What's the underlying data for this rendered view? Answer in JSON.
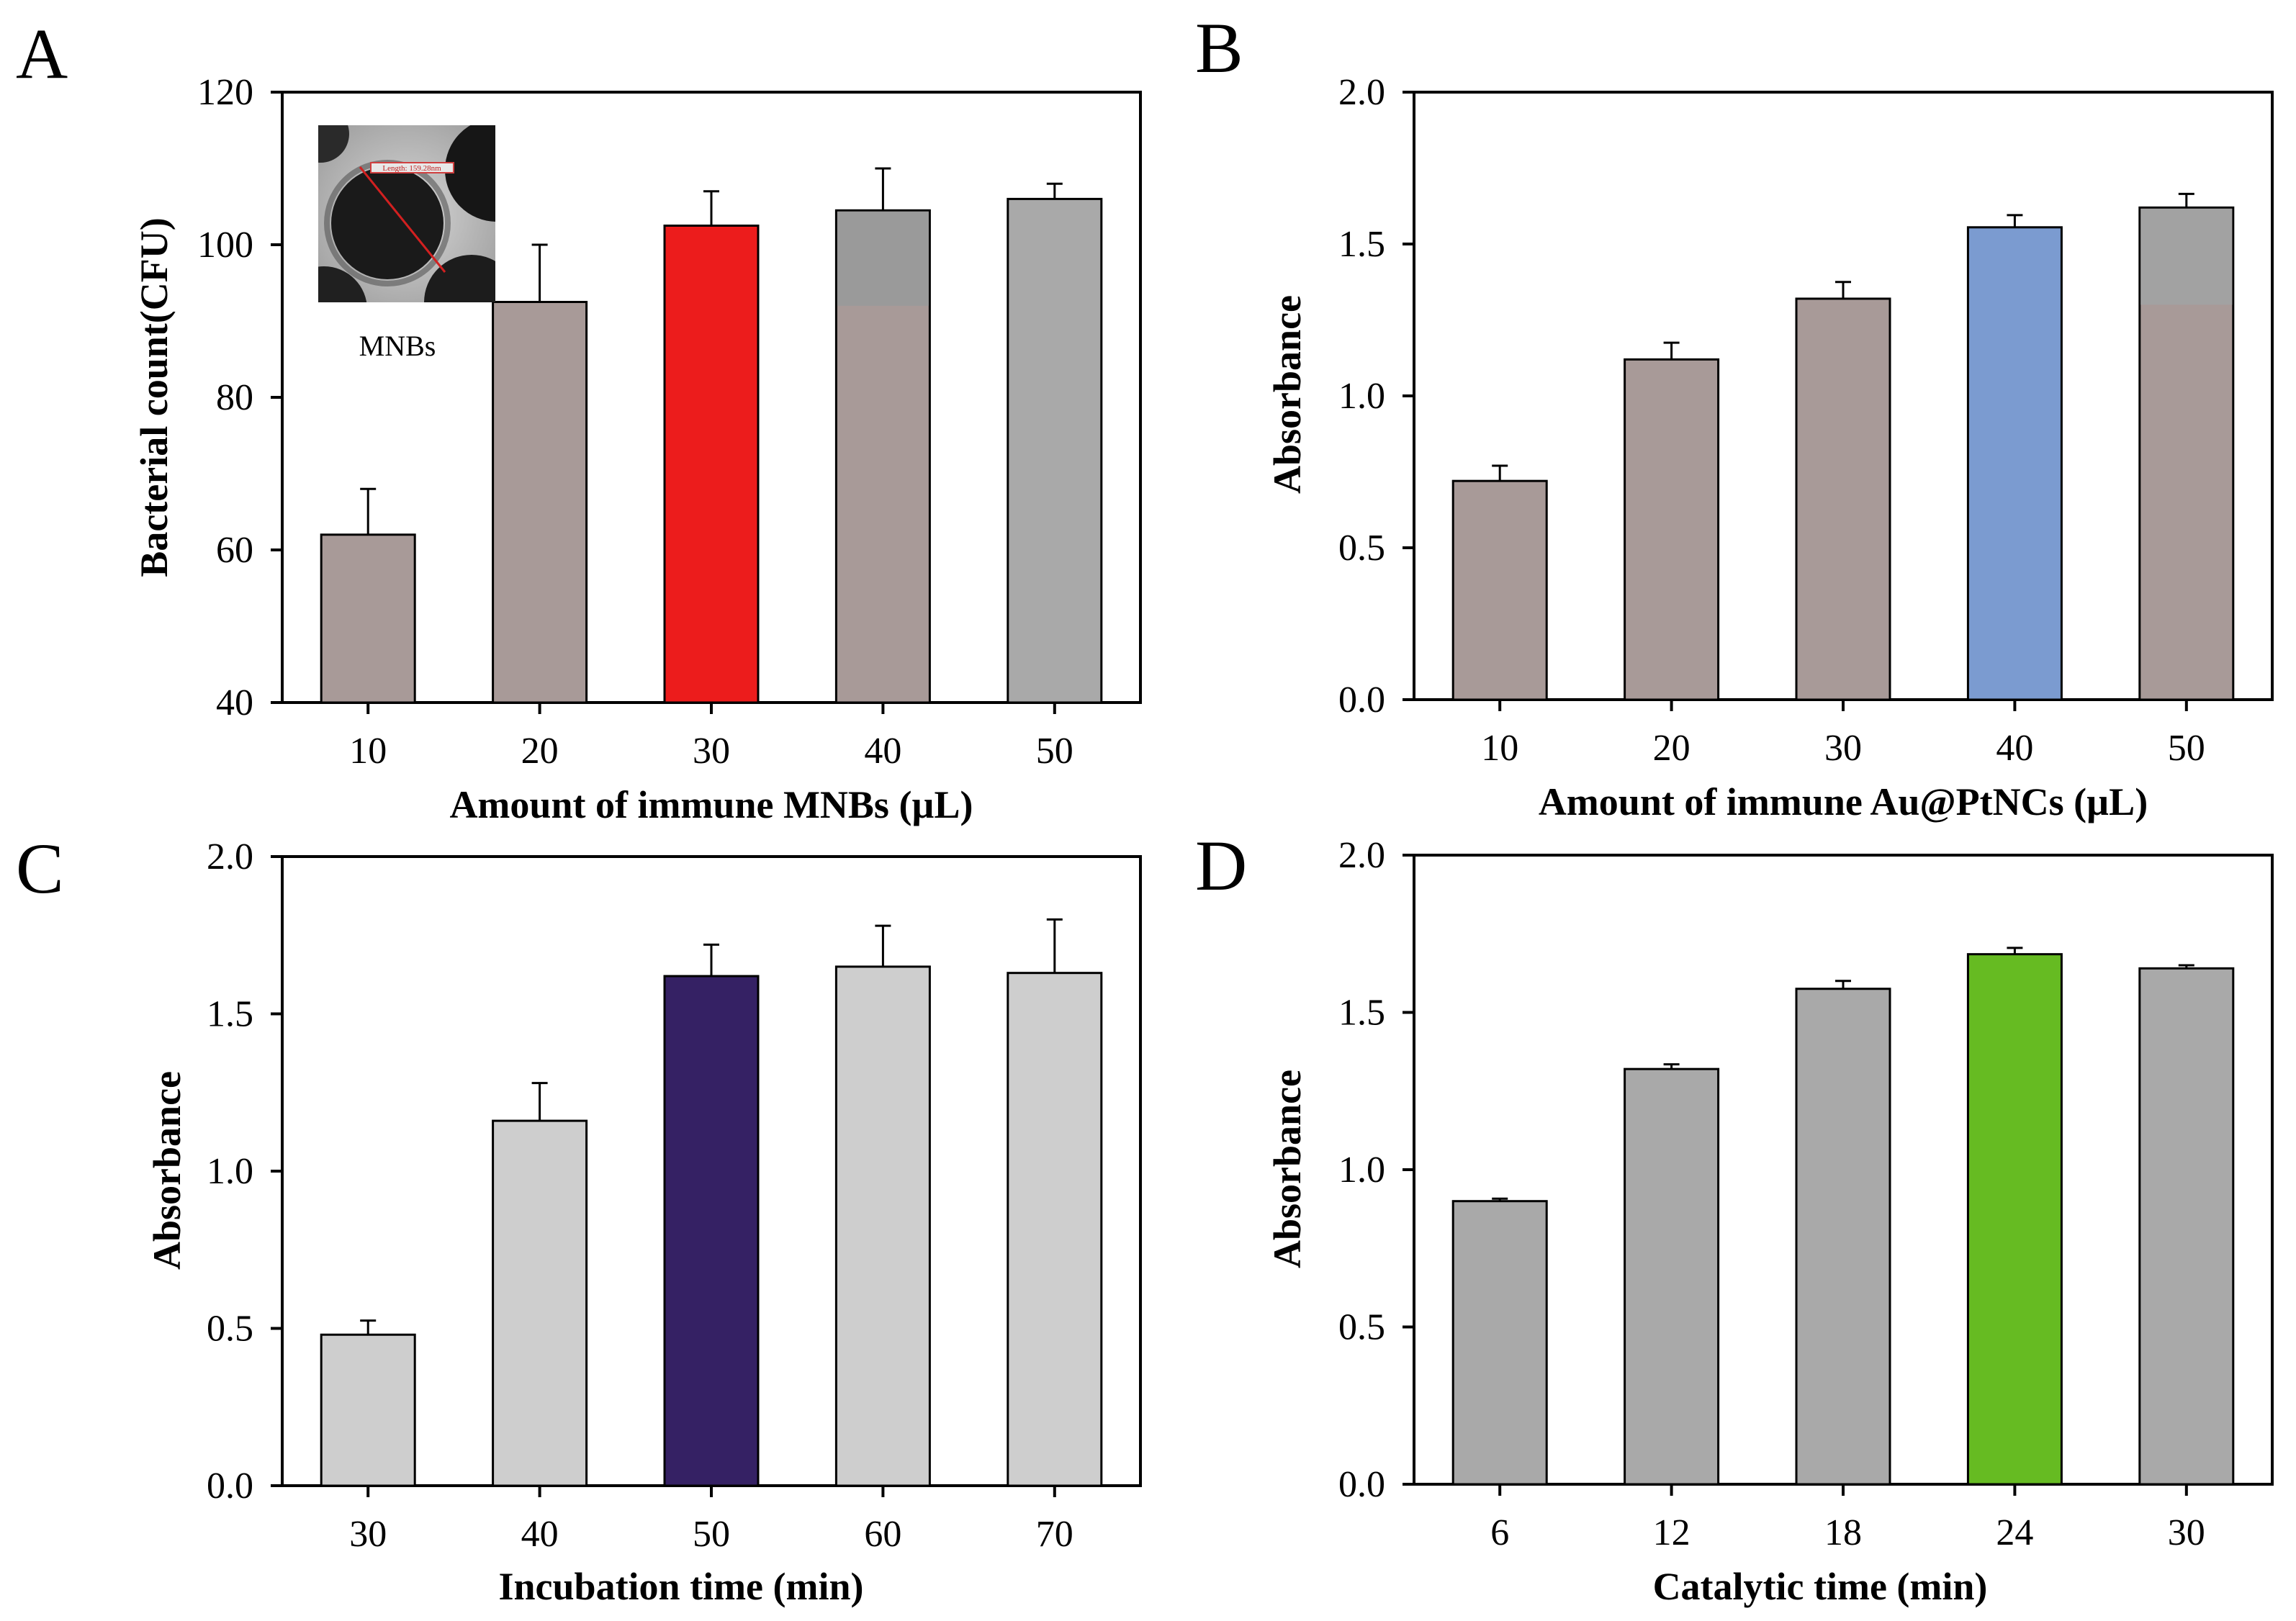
{
  "chart_data": [
    {
      "panel": "A",
      "type": "bar",
      "title": "",
      "xlabel": "Amount of immune MNBs (µL)",
      "ylabel": "Bacterial count(CFU)",
      "categories": [
        "10",
        "20",
        "30",
        "40",
        "50"
      ],
      "values": [
        62,
        92.5,
        102.5,
        104.5,
        106
      ],
      "errors": [
        6,
        7.5,
        4.5,
        5.5,
        2
      ],
      "bar_colors": [
        "#a89a98",
        "#a89a98",
        "#ec1c1c",
        "#a89a98",
        "#a9a9a9"
      ],
      "upper_colors": [
        "#a89a98",
        "#a89a98",
        "#e61e28",
        "#9a9a9a",
        "#a9a9a9"
      ],
      "upper_from": [
        null,
        null,
        null,
        92,
        null
      ],
      "ylim": [
        40,
        120
      ],
      "yticks": [
        40,
        60,
        80,
        100,
        120
      ],
      "ytick_labels": [
        "40",
        "60",
        "80",
        "100",
        "120"
      ],
      "grid": false,
      "inset": {
        "caption": "MNBs",
        "scale_label": "Length: 159.28nm"
      }
    },
    {
      "panel": "B",
      "type": "bar",
      "title": "",
      "xlabel": "Amount of immune Au@PtNCs (µL)",
      "ylabel": "Absorbance",
      "categories": [
        "10",
        "20",
        "30",
        "40",
        "50"
      ],
      "values": [
        0.72,
        1.12,
        1.32,
        1.555,
        1.62
      ],
      "errors": [
        0.05,
        0.055,
        0.055,
        0.04,
        0.045
      ],
      "bar_colors": [
        "#a89a98",
        "#a89a98",
        "#a89a98",
        "#7b9bd0",
        "#a89a98"
      ],
      "upper_colors": [
        "#a89a98",
        "#a89a98",
        "#a89a98",
        "#7b9bd0",
        "#a2a2a2"
      ],
      "upper_from": [
        null,
        null,
        null,
        null,
        1.3
      ],
      "ylim": [
        0,
        2.0
      ],
      "yticks": [
        0,
        0.5,
        1.0,
        1.5,
        2.0
      ],
      "ytick_labels": [
        "0.0",
        "0.5",
        "1.0",
        "1.5",
        "2.0"
      ],
      "grid": false
    },
    {
      "panel": "C",
      "type": "bar",
      "title": "",
      "xlabel": "Incubation time (min)",
      "ylabel": "Absorbance",
      "categories": [
        "30",
        "40",
        "50",
        "60",
        "70"
      ],
      "values": [
        0.48,
        1.16,
        1.62,
        1.65,
        1.63
      ],
      "errors": [
        0.045,
        0.12,
        0.1,
        0.13,
        0.17
      ],
      "bar_colors": [
        "#cecece",
        "#cecece",
        "#352164",
        "#cecece",
        "#cecece"
      ],
      "upper_colors": [
        "#cecece",
        "#cecece",
        "#352164",
        "#cecece",
        "#cecece"
      ],
      "upper_from": [
        null,
        null,
        null,
        null,
        null
      ],
      "ylim": [
        0,
        2.0
      ],
      "yticks": [
        0,
        0.5,
        1.0,
        1.5,
        2.0
      ],
      "ytick_labels": [
        "0.0",
        "0.5",
        "1.0",
        "1.5",
        "2.0"
      ],
      "grid": false
    },
    {
      "panel": "D",
      "type": "bar",
      "title": "",
      "xlabel": "Catalytic time (min)",
      "ylabel": "Absorbance",
      "categories": [
        "6",
        "12",
        "18",
        "24",
        "30"
      ],
      "values": [
        0.9,
        1.32,
        1.575,
        1.685,
        1.64
      ],
      "errors": [
        0.008,
        0.015,
        0.025,
        0.02,
        0.01
      ],
      "bar_colors": [
        "#a9a9a9",
        "#a9a9a9",
        "#a9a9a9",
        "#66bb22",
        "#a9a9a9"
      ],
      "upper_colors": [
        "#a9a9a9",
        "#a9a9a9",
        "#a9a9a9",
        "#66bb22",
        "#a9a9a9"
      ],
      "upper_from": [
        null,
        null,
        null,
        null,
        null
      ],
      "ylim": [
        0,
        2.0
      ],
      "yticks": [
        0,
        0.5,
        1.0,
        1.5,
        2.0
      ],
      "ytick_labels": [
        "0.0",
        "0.5",
        "1.0",
        "1.5",
        "2.0"
      ],
      "grid": false
    }
  ]
}
